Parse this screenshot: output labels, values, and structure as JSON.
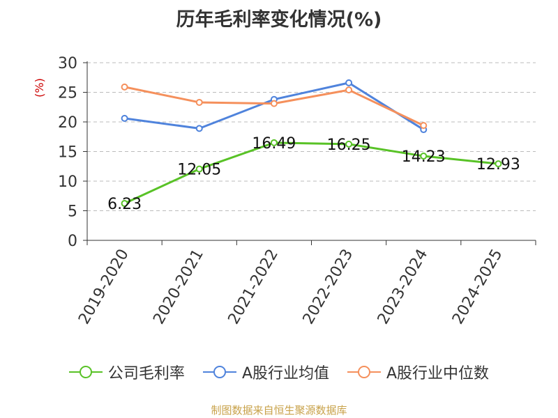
{
  "title": "历年毛利率变化情况(%)",
  "source": "制图数据来自恒生聚源数据库",
  "colors": {
    "company": "#58c226",
    "industry_avg": "#4f83dc",
    "industry_median": "#f5905c",
    "axis_label_unit": "#cc0000",
    "grid": "#bbbbbb",
    "axis": "#333333"
  },
  "chart_data": {
    "type": "line",
    "title": "历年毛利率变化情况(%)",
    "ylabel": "(%)",
    "xlabel": "",
    "ylim": [
      0,
      30
    ],
    "yticks": [
      0,
      5,
      10,
      15,
      20,
      25,
      30
    ],
    "categories": [
      "2019-2020",
      "2020-2021",
      "2021-2022",
      "2022-2023",
      "2023-2024",
      "2024-2025"
    ],
    "grid": true,
    "legend_position": "bottom",
    "series": [
      {
        "name": "公司毛利率",
        "key": "company",
        "values": [
          6.23,
          12.05,
          16.49,
          16.25,
          14.23,
          12.93
        ],
        "labels": [
          "6.23",
          "12.05",
          "16.49",
          "16.25",
          "14.23",
          "12.93"
        ]
      },
      {
        "name": "A股行业均值",
        "key": "industry_avg",
        "values": [
          20.6,
          18.9,
          23.8,
          26.6,
          18.7,
          null
        ]
      },
      {
        "name": "A股行业中位数",
        "key": "industry_median",
        "values": [
          25.9,
          23.3,
          23.1,
          25.4,
          19.4,
          null
        ]
      }
    ]
  }
}
